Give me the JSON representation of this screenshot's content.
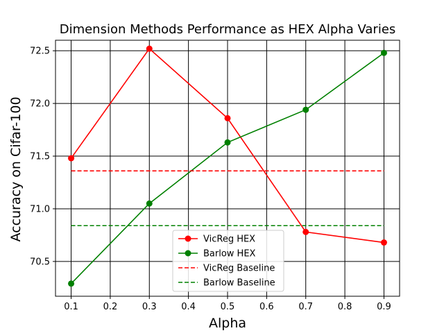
{
  "chart_data": {
    "type": "line",
    "title": "Dimension Methods Performance as HEX Alpha Varies",
    "xlabel": "Alpha",
    "ylabel": "Accuracy on Cifar-100",
    "xlim": [
      0.06,
      0.94
    ],
    "ylim": [
      70.17,
      72.6
    ],
    "xticks": [
      0.1,
      0.2,
      0.3,
      0.4,
      0.5,
      0.6,
      0.7,
      0.8,
      0.9
    ],
    "xtick_labels": [
      "0.1",
      "0.2",
      "0.3",
      "0.4",
      "0.5",
      "0.6",
      "0.7",
      "0.8",
      "0.9"
    ],
    "yticks": [
      70.5,
      71.0,
      71.5,
      72.0,
      72.5
    ],
    "ytick_labels": [
      "70.5",
      "71.0",
      "71.5",
      "72.0",
      "72.5"
    ],
    "grid": true,
    "legend_position": "lower-center",
    "series": [
      {
        "name": "VicReg HEX",
        "style": "solid",
        "marker": "circle",
        "color": "#ff0000",
        "x": [
          0.1,
          0.3,
          0.5,
          0.7,
          0.9
        ],
        "y": [
          71.48,
          72.52,
          71.86,
          70.78,
          70.68
        ]
      },
      {
        "name": "Barlow HEX",
        "style": "solid",
        "marker": "circle",
        "color": "#008000",
        "x": [
          0.1,
          0.3,
          0.5,
          0.7,
          0.9
        ],
        "y": [
          70.29,
          71.05,
          71.63,
          71.94,
          72.48
        ]
      },
      {
        "name": "VicReg Baseline",
        "style": "dashed",
        "marker": "none",
        "color": "#ff0000",
        "x": [
          0.1,
          0.9
        ],
        "y": [
          71.36,
          71.36
        ]
      },
      {
        "name": "Barlow Baseline",
        "style": "dashed",
        "marker": "none",
        "color": "#008000",
        "x": [
          0.1,
          0.9
        ],
        "y": [
          70.84,
          70.84
        ]
      }
    ]
  }
}
